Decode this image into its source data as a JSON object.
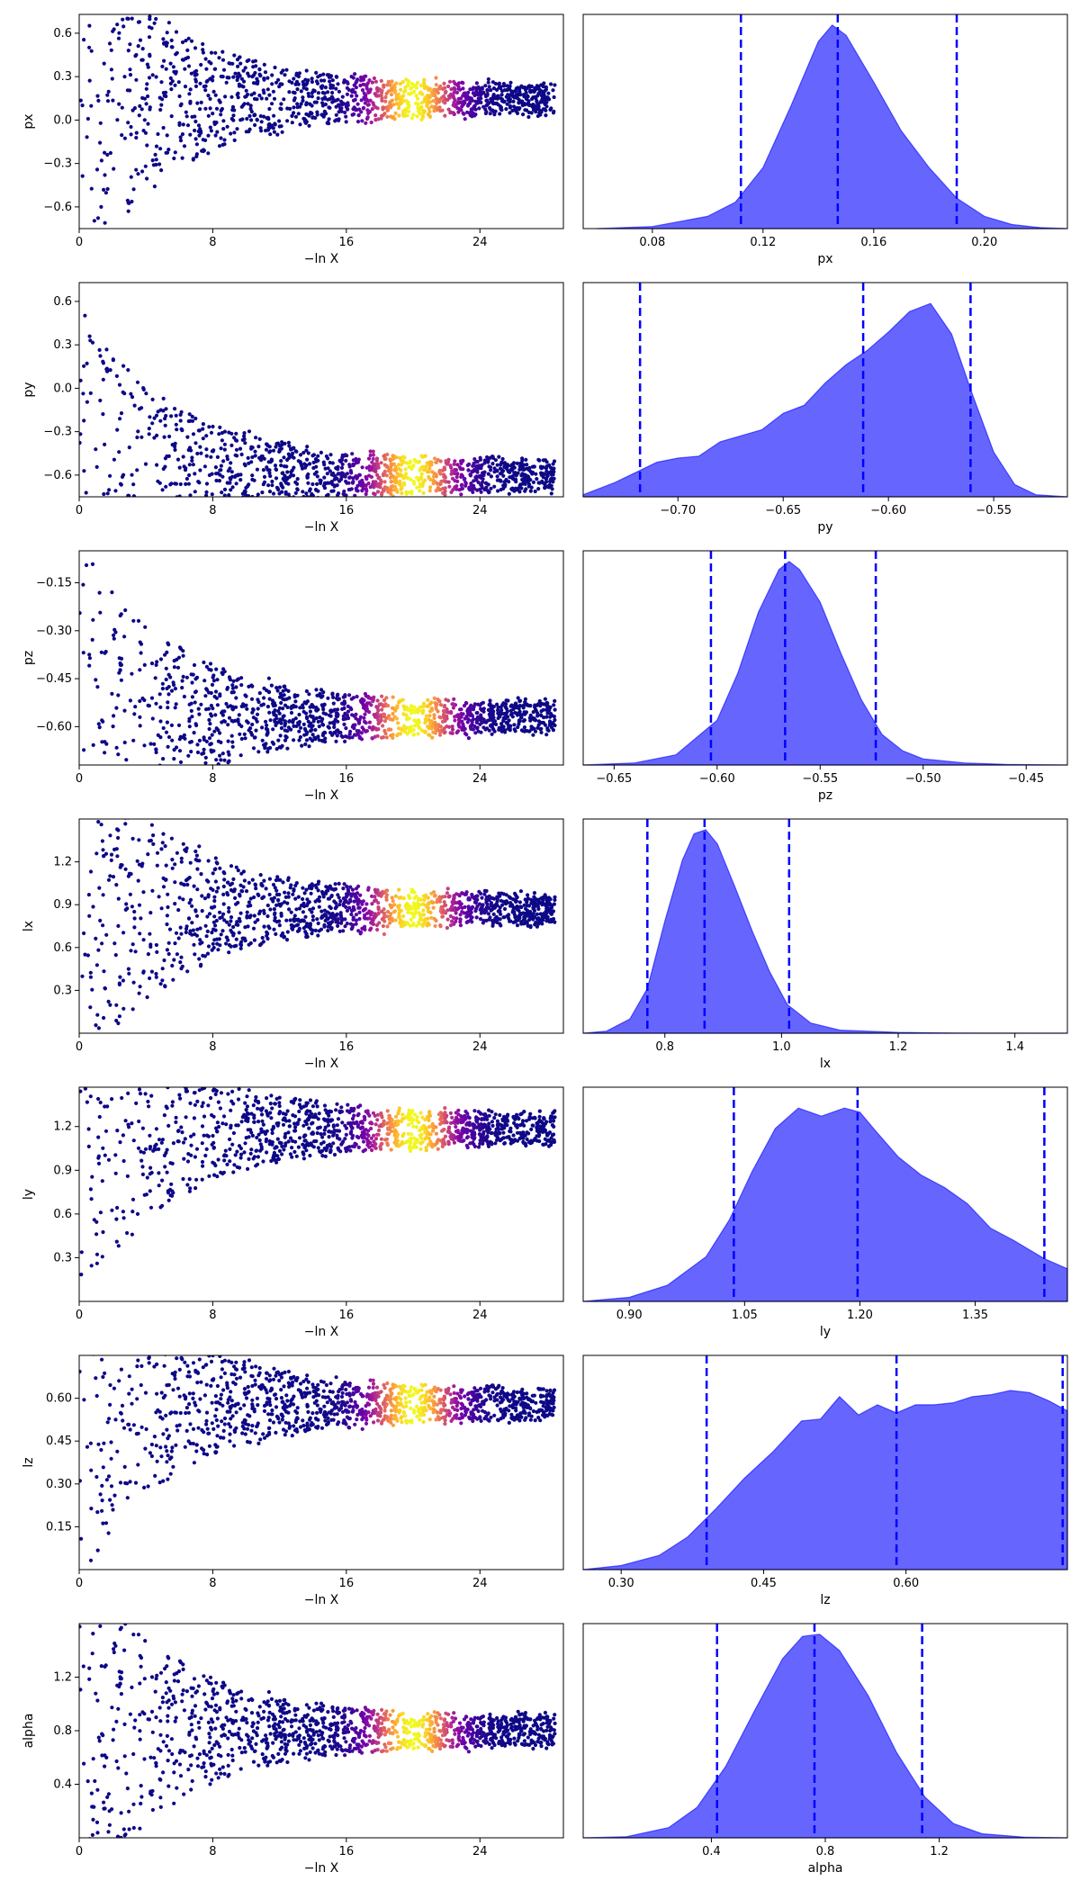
{
  "colors": {
    "kde": "#0000ff",
    "kde_fill": "#6666ff",
    "quantile_line": "#0000ff",
    "scatter_low": "#0d0887",
    "scatter_mid": "#cc4778",
    "scatter_high": "#f0f921"
  },
  "chart_data": [
    {
      "type": "scatter",
      "param": "px",
      "xlabel": "−ln X",
      "ylabel": "px",
      "xlim": [
        0,
        29
      ],
      "ylim": [
        -0.75,
        0.73
      ],
      "xticks": [
        0,
        8,
        16,
        24
      ],
      "yticks": [
        -0.6,
        -0.3,
        0.0,
        0.3,
        0.6
      ],
      "ytick_labels": [
        "−0.6",
        "−0.3",
        "0.0",
        "0.3",
        "0.6"
      ],
      "converge_value": 0.145,
      "band_center": 20
    },
    {
      "type": "area",
      "param": "px",
      "xlabel": "px",
      "xlim": [
        0.055,
        0.23
      ],
      "xticks": [
        0.08,
        0.12,
        0.16,
        0.2
      ],
      "xtick_labels": [
        "0.08",
        "0.12",
        "0.16",
        "0.20"
      ],
      "x": [
        0.06,
        0.08,
        0.1,
        0.11,
        0.12,
        0.13,
        0.14,
        0.145,
        0.15,
        0.16,
        0.17,
        0.18,
        0.19,
        0.2,
        0.21,
        0.22,
        0.23
      ],
      "y": [
        0.0,
        0.01,
        0.06,
        0.13,
        0.3,
        0.6,
        0.92,
        1.0,
        0.95,
        0.72,
        0.48,
        0.3,
        0.15,
        0.06,
        0.02,
        0.005,
        0.0
      ],
      "quantiles": [
        0.112,
        0.147,
        0.19
      ]
    },
    {
      "type": "scatter",
      "param": "py",
      "xlabel": "−ln X",
      "ylabel": "py",
      "xlim": [
        0,
        29
      ],
      "ylim": [
        -0.75,
        0.73
      ],
      "xticks": [
        0,
        8,
        16,
        24
      ],
      "yticks": [
        -0.6,
        -0.3,
        0.0,
        0.3,
        0.6
      ],
      "ytick_labels": [
        "−0.6",
        "−0.3",
        "0.0",
        "0.3",
        "0.6"
      ],
      "converge_value": -0.6,
      "band_center": 20
    },
    {
      "type": "area",
      "param": "py",
      "xlabel": "py",
      "xlim": [
        -0.745,
        -0.515
      ],
      "xticks": [
        -0.7,
        -0.65,
        -0.6,
        -0.55
      ],
      "xtick_labels": [
        "−0.70",
        "−0.65",
        "−0.60",
        "−0.55"
      ],
      "x": [
        -0.745,
        -0.73,
        -0.72,
        -0.71,
        -0.7,
        -0.69,
        -0.68,
        -0.67,
        -0.66,
        -0.65,
        -0.64,
        -0.63,
        -0.62,
        -0.61,
        -0.6,
        -0.59,
        -0.58,
        -0.57,
        -0.56,
        -0.55,
        -0.54,
        -0.53,
        -0.515
      ],
      "y": [
        0.01,
        0.07,
        0.12,
        0.17,
        0.19,
        0.2,
        0.27,
        0.3,
        0.33,
        0.41,
        0.45,
        0.56,
        0.65,
        0.72,
        0.81,
        0.91,
        0.95,
        0.8,
        0.5,
        0.22,
        0.06,
        0.01,
        0.0
      ],
      "quantiles": [
        -0.718,
        -0.612,
        -0.561
      ]
    },
    {
      "type": "scatter",
      "param": "pz",
      "xlabel": "−ln X",
      "ylabel": "pz",
      "xlim": [
        0,
        29
      ],
      "ylim": [
        -0.72,
        -0.05
      ],
      "xticks": [
        0,
        8,
        16,
        24
      ],
      "yticks": [
        -0.6,
        -0.45,
        -0.3,
        -0.15
      ],
      "ytick_labels": [
        "−0.60",
        "−0.45",
        "−0.30",
        "−0.15"
      ],
      "converge_value": -0.57,
      "band_center": 20
    },
    {
      "type": "area",
      "param": "pz",
      "xlabel": "pz",
      "xlim": [
        -0.665,
        -0.43
      ],
      "xticks": [
        -0.65,
        -0.6,
        -0.55,
        -0.5,
        -0.45
      ],
      "xtick_labels": [
        "−0.65",
        "−0.60",
        "−0.55",
        "−0.50",
        "−0.45"
      ],
      "x": [
        -0.665,
        -0.64,
        -0.62,
        -0.6,
        -0.59,
        -0.58,
        -0.57,
        -0.565,
        -0.56,
        -0.55,
        -0.54,
        -0.53,
        -0.52,
        -0.51,
        -0.5,
        -0.48,
        -0.46,
        -0.43
      ],
      "y": [
        0.0,
        0.01,
        0.05,
        0.22,
        0.45,
        0.75,
        0.96,
        1.0,
        0.96,
        0.8,
        0.55,
        0.32,
        0.15,
        0.07,
        0.03,
        0.01,
        0.003,
        0.0
      ],
      "quantiles": [
        -0.603,
        -0.567,
        -0.523
      ]
    },
    {
      "type": "scatter",
      "param": "lx",
      "xlabel": "−ln X",
      "ylabel": "lx",
      "xlim": [
        0,
        29
      ],
      "ylim": [
        0.0,
        1.5
      ],
      "xticks": [
        0,
        8,
        16,
        24
      ],
      "yticks": [
        0.3,
        0.6,
        0.9,
        1.2
      ],
      "ytick_labels": [
        "0.3",
        "0.6",
        "0.9",
        "1.2"
      ],
      "converge_value": 0.87,
      "band_center": 20
    },
    {
      "type": "area",
      "param": "lx",
      "xlabel": "lx",
      "xlim": [
        0.66,
        1.49
      ],
      "xticks": [
        0.8,
        1.0,
        1.2,
        1.4
      ],
      "xtick_labels": [
        "0.8",
        "1.0",
        "1.2",
        "1.4"
      ],
      "x": [
        0.66,
        0.7,
        0.74,
        0.77,
        0.8,
        0.83,
        0.85,
        0.87,
        0.89,
        0.92,
        0.95,
        0.98,
        1.01,
        1.05,
        1.1,
        1.2,
        1.3,
        1.49
      ],
      "y": [
        0.0,
        0.01,
        0.07,
        0.22,
        0.55,
        0.85,
        0.98,
        1.0,
        0.93,
        0.72,
        0.5,
        0.3,
        0.14,
        0.05,
        0.015,
        0.004,
        0.001,
        0.0
      ],
      "quantiles": [
        0.77,
        0.868,
        1.013
      ]
    },
    {
      "type": "scatter",
      "param": "ly",
      "xlabel": "−ln X",
      "ylabel": "ly",
      "xlim": [
        0,
        29
      ],
      "ylim": [
        0.0,
        1.47
      ],
      "xticks": [
        0,
        8,
        16,
        24
      ],
      "yticks": [
        0.3,
        0.6,
        0.9,
        1.2
      ],
      "ytick_labels": [
        "0.3",
        "0.6",
        "0.9",
        "1.2"
      ],
      "converge_value": 1.18,
      "band_center": 20
    },
    {
      "type": "area",
      "param": "ly",
      "xlabel": "ly",
      "xlim": [
        0.84,
        1.47
      ],
      "xticks": [
        0.9,
        1.05,
        1.2,
        1.35
      ],
      "xtick_labels": [
        "0.90",
        "1.05",
        "1.20",
        "1.35"
      ],
      "x": [
        0.84,
        0.9,
        0.95,
        1.0,
        1.03,
        1.06,
        1.09,
        1.12,
        1.15,
        1.18,
        1.2,
        1.22,
        1.25,
        1.28,
        1.31,
        1.34,
        1.37,
        1.4,
        1.44,
        1.47
      ],
      "y": [
        0.0,
        0.02,
        0.08,
        0.22,
        0.4,
        0.64,
        0.85,
        0.95,
        0.91,
        0.95,
        0.93,
        0.84,
        0.71,
        0.62,
        0.56,
        0.48,
        0.36,
        0.3,
        0.21,
        0.16
      ],
      "quantiles": [
        1.036,
        1.197,
        1.44
      ]
    },
    {
      "type": "scatter",
      "param": "lz",
      "xlabel": "−ln X",
      "ylabel": "lz",
      "xlim": [
        0,
        29
      ],
      "ylim": [
        0.0,
        0.75
      ],
      "xticks": [
        0,
        8,
        16,
        24
      ],
      "yticks": [
        0.15,
        0.3,
        0.45,
        0.6
      ],
      "ytick_labels": [
        "0.15",
        "0.30",
        "0.45",
        "0.60"
      ],
      "converge_value": 0.58,
      "band_center": 20
    },
    {
      "type": "area",
      "param": "lz",
      "xlabel": "lz",
      "xlim": [
        0.26,
        0.77
      ],
      "xticks": [
        0.3,
        0.45,
        0.6
      ],
      "xtick_labels": [
        "0.30",
        "0.45",
        "0.60"
      ],
      "x": [
        0.26,
        0.3,
        0.34,
        0.37,
        0.4,
        0.43,
        0.46,
        0.49,
        0.51,
        0.53,
        0.55,
        0.57,
        0.59,
        0.61,
        0.63,
        0.65,
        0.67,
        0.69,
        0.71,
        0.73,
        0.75,
        0.77
      ],
      "y": [
        0.0,
        0.02,
        0.07,
        0.16,
        0.3,
        0.45,
        0.58,
        0.73,
        0.74,
        0.85,
        0.76,
        0.81,
        0.77,
        0.81,
        0.81,
        0.82,
        0.85,
        0.86,
        0.88,
        0.87,
        0.83,
        0.78
      ],
      "quantiles": [
        0.39,
        0.59,
        0.765
      ]
    },
    {
      "type": "scatter",
      "param": "alpha",
      "xlabel": "−ln X",
      "ylabel": "alpha",
      "xlim": [
        0,
        29
      ],
      "ylim": [
        0.0,
        1.6
      ],
      "xticks": [
        0,
        8,
        16,
        24
      ],
      "yticks": [
        0.4,
        0.8,
        1.2
      ],
      "ytick_labels": [
        "0.4",
        "0.8",
        "1.2"
      ],
      "converge_value": 0.8,
      "band_center": 20
    },
    {
      "type": "area",
      "param": "alpha",
      "xlabel": "alpha",
      "xlim": [
        -0.05,
        1.65
      ],
      "xticks": [
        0.4,
        0.8,
        1.2
      ],
      "xtick_labels": [
        "0.4",
        "0.8",
        "1.2"
      ],
      "x": [
        -0.05,
        0.1,
        0.25,
        0.35,
        0.45,
        0.55,
        0.65,
        0.72,
        0.78,
        0.85,
        0.95,
        1.05,
        1.15,
        1.25,
        1.35,
        1.5,
        1.65
      ],
      "y": [
        0.0,
        0.005,
        0.05,
        0.15,
        0.35,
        0.62,
        0.88,
        0.99,
        1.0,
        0.92,
        0.7,
        0.42,
        0.2,
        0.07,
        0.02,
        0.003,
        0.0
      ],
      "quantiles": [
        0.42,
        0.762,
        1.14
      ]
    }
  ]
}
